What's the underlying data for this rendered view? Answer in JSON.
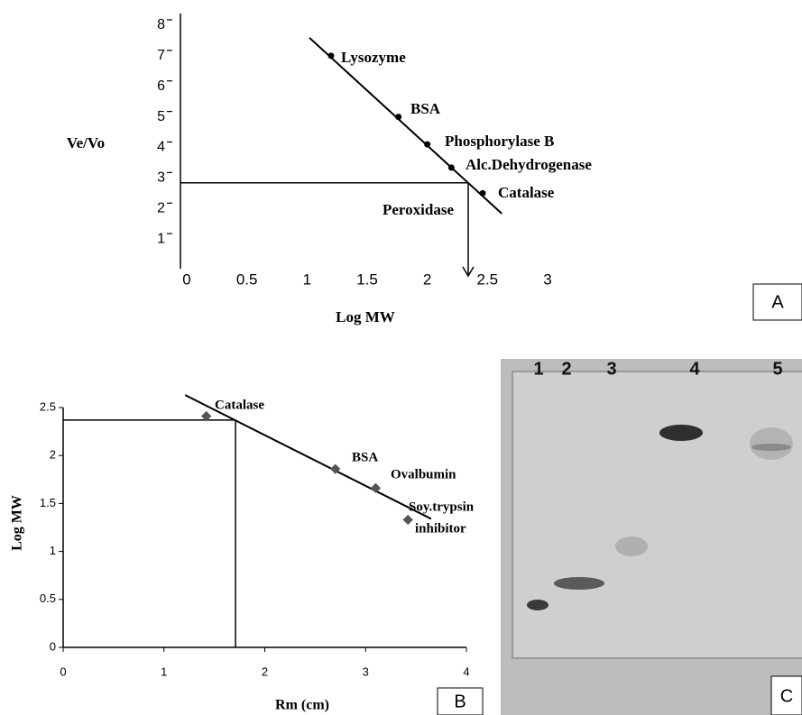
{
  "chart_data": [
    {
      "type": "scatter",
      "panel": "A",
      "x_label": "Log MW",
      "y_label": "Ve/Vo",
      "labels": [
        "Lysozyme",
        "BSA",
        "Phosphorylase B",
        "Alc.Dehydrogenase",
        "Catalase"
      ],
      "x": [
        1.2,
        1.76,
        2.0,
        2.2,
        2.46
      ],
      "values": [
        7.0,
        5.0,
        4.1,
        3.34,
        2.5
      ],
      "fit_line": {
        "x": [
          1.02,
          2.62
        ],
        "values": [
          7.59,
          1.83
        ]
      },
      "readout": {
        "label": "Peroxidase",
        "x": 2.34,
        "value": 2.84
      },
      "xlim": [
        0,
        3
      ],
      "ylim": [
        0,
        8
      ],
      "xticks": [
        0,
        0.5,
        1,
        1.5,
        2,
        2.5,
        3
      ],
      "yticks": [
        1,
        2,
        3,
        4,
        5,
        6,
        7,
        8
      ]
    },
    {
      "type": "scatter",
      "panel": "B",
      "x_label": "Rm (cm)",
      "y_label": "Log MW",
      "labels": [
        [
          "Catalase"
        ],
        [
          "BSA"
        ],
        [
          "Ovalbumin"
        ],
        [
          "Soy.trypsin",
          "inhibitor"
        ]
      ],
      "x": [
        1.42,
        2.7,
        3.1,
        3.42
      ],
      "values": [
        2.41,
        1.86,
        1.66,
        1.33
      ],
      "fit_line": {
        "x": [
          1.21,
          3.65
        ],
        "values": [
          2.63,
          1.34
        ]
      },
      "readout": {
        "x": 1.71,
        "value": 2.37
      },
      "xlim": [
        0,
        4
      ],
      "ylim": [
        0,
        2.5
      ],
      "xticks": [
        0,
        1,
        2,
        3,
        4
      ],
      "yticks": [
        0,
        0.5,
        1,
        1.5,
        2,
        2.5
      ]
    }
  ],
  "gel": {
    "lanes": [
      "1",
      "2",
      "3",
      "4",
      "5"
    ],
    "panel": "C"
  }
}
